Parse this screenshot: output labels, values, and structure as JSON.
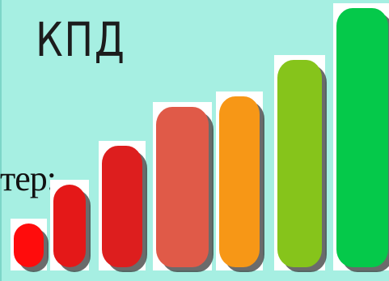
{
  "title": "КПД",
  "text_fragment": "тер:",
  "colors": {
    "background": "#a6efe2",
    "bars": [
      "#ff0c0c",
      "#e41818",
      "#dd1e1e",
      "#e05a48",
      "#f79716",
      "#86c41b",
      "#05c94a"
    ]
  },
  "bars": [
    {
      "level": 0.17
    },
    {
      "level": 0.32
    },
    {
      "level": 0.47
    },
    {
      "level": 0.62
    },
    {
      "level": 0.66
    },
    {
      "level": 0.8
    },
    {
      "level": 1.0
    }
  ]
}
